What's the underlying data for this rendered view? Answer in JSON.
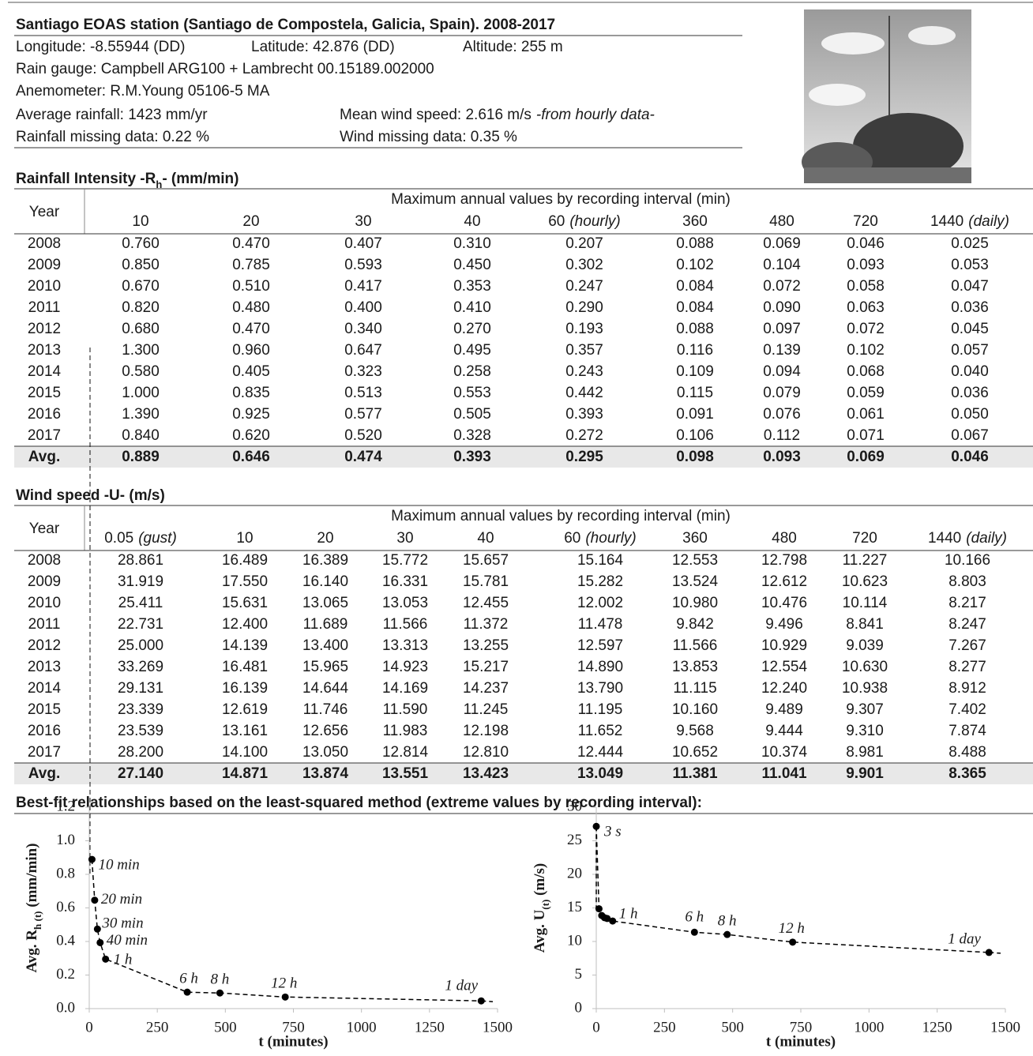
{
  "header": {
    "title": "Santiago EOAS station (Santiago de Compostela, Galicia, Spain). 2008-2017",
    "longitude": "Longitude: -8.55944 (DD)",
    "latitude": "Latitude: 42.876 (DD)",
    "altitude": "Altitude: 255 m",
    "rain_gauge": "Rain gauge: Campbell  ARG100 + Lambrecht 00.15189.002000",
    "anemometer": "Anemometer: R.M.Young 05106-5 MA",
    "average_rainfall": "Average rainfall: 1423 mm/yr",
    "mean_wind": "Mean wind speed: 2.616 m/s",
    "mean_wind_note": "-from hourly data-",
    "rain_missing": "Rainfall missing data: 0.22 %",
    "wind_missing": "Wind missing data: 0.35 %"
  },
  "rainfall": {
    "title_parts": [
      "Rainfall Intensity -R",
      "h",
      "- (mm/min)"
    ],
    "year_header": "Year",
    "span_header": "Maximum annual values by recording interval (min)",
    "columns": [
      {
        "label": "10"
      },
      {
        "label": "20"
      },
      {
        "label": "30"
      },
      {
        "label": "40"
      },
      {
        "label": "60",
        "note": "(hourly)"
      },
      {
        "label": "360"
      },
      {
        "label": "480"
      },
      {
        "label": "720"
      },
      {
        "label": "1440",
        "note": "(daily)"
      }
    ],
    "rows": [
      [
        "2008",
        "0.760",
        "0.470",
        "0.407",
        "0.310",
        "0.207",
        "0.088",
        "0.069",
        "0.046",
        "0.025"
      ],
      [
        "2009",
        "0.850",
        "0.785",
        "0.593",
        "0.450",
        "0.302",
        "0.102",
        "0.104",
        "0.093",
        "0.053"
      ],
      [
        "2010",
        "0.670",
        "0.510",
        "0.417",
        "0.353",
        "0.247",
        "0.084",
        "0.072",
        "0.058",
        "0.047"
      ],
      [
        "2011",
        "0.820",
        "0.480",
        "0.400",
        "0.410",
        "0.290",
        "0.084",
        "0.090",
        "0.063",
        "0.036"
      ],
      [
        "2012",
        "0.680",
        "0.470",
        "0.340",
        "0.270",
        "0.193",
        "0.088",
        "0.097",
        "0.072",
        "0.045"
      ],
      [
        "2013",
        "1.300",
        "0.960",
        "0.647",
        "0.495",
        "0.357",
        "0.116",
        "0.139",
        "0.102",
        "0.057"
      ],
      [
        "2014",
        "0.580",
        "0.405",
        "0.323",
        "0.258",
        "0.243",
        "0.109",
        "0.094",
        "0.068",
        "0.040"
      ],
      [
        "2015",
        "1.000",
        "0.835",
        "0.513",
        "0.553",
        "0.442",
        "0.115",
        "0.079",
        "0.059",
        "0.036"
      ],
      [
        "2016",
        "1.390",
        "0.925",
        "0.577",
        "0.505",
        "0.393",
        "0.091",
        "0.076",
        "0.061",
        "0.050"
      ],
      [
        "2017",
        "0.840",
        "0.620",
        "0.520",
        "0.328",
        "0.272",
        "0.106",
        "0.112",
        "0.071",
        "0.067"
      ]
    ],
    "average": [
      "Avg.",
      "0.889",
      "0.646",
      "0.474",
      "0.393",
      "0.295",
      "0.098",
      "0.093",
      "0.069",
      "0.046"
    ]
  },
  "wind": {
    "title_parts": [
      "Wind speed -U- (m/s)"
    ],
    "year_header": "Year",
    "span_header": "Maximum annual values by recording interval (min)",
    "columns": [
      {
        "label": "0.05",
        "note": "(gust)"
      },
      {
        "label": "10"
      },
      {
        "label": "20"
      },
      {
        "label": "30"
      },
      {
        "label": "40"
      },
      {
        "label": "60",
        "note": "(hourly)"
      },
      {
        "label": "360"
      },
      {
        "label": "480"
      },
      {
        "label": "720"
      },
      {
        "label": "1440",
        "note": "(daily)"
      }
    ],
    "rows": [
      [
        "2008",
        "28.861",
        "16.489",
        "16.389",
        "15.772",
        "15.657",
        "15.164",
        "12.553",
        "12.798",
        "11.227",
        "10.166"
      ],
      [
        "2009",
        "31.919",
        "17.550",
        "16.140",
        "16.331",
        "15.781",
        "15.282",
        "13.524",
        "12.612",
        "10.623",
        "8.803"
      ],
      [
        "2010",
        "25.411",
        "15.631",
        "13.065",
        "13.053",
        "12.455",
        "12.002",
        "10.980",
        "10.476",
        "10.114",
        "8.217"
      ],
      [
        "2011",
        "22.731",
        "12.400",
        "11.689",
        "11.566",
        "11.372",
        "11.478",
        "9.842",
        "9.496",
        "8.841",
        "8.247"
      ],
      [
        "2012",
        "25.000",
        "14.139",
        "13.400",
        "13.313",
        "13.255",
        "12.597",
        "11.566",
        "10.929",
        "9.039",
        "7.267"
      ],
      [
        "2013",
        "33.269",
        "16.481",
        "15.965",
        "14.923",
        "15.217",
        "14.890",
        "13.853",
        "12.554",
        "10.630",
        "8.277"
      ],
      [
        "2014",
        "29.131",
        "16.139",
        "14.644",
        "14.169",
        "14.237",
        "13.790",
        "11.115",
        "12.240",
        "10.938",
        "8.912"
      ],
      [
        "2015",
        "23.339",
        "12.619",
        "11.746",
        "11.590",
        "11.245",
        "11.195",
        "10.160",
        "9.489",
        "9.307",
        "7.402"
      ],
      [
        "2016",
        "23.539",
        "13.161",
        "12.656",
        "11.983",
        "12.198",
        "11.652",
        "9.568",
        "9.444",
        "9.310",
        "7.874"
      ],
      [
        "2017",
        "28.200",
        "14.100",
        "13.050",
        "12.814",
        "12.810",
        "12.444",
        "10.652",
        "10.374",
        "8.981",
        "8.488"
      ]
    ],
    "average": [
      "Avg.",
      "27.140",
      "14.871",
      "13.874",
      "13.551",
      "13.423",
      "13.049",
      "11.381",
      "11.041",
      "9.901",
      "8.365"
    ]
  },
  "fit_title": "Best-fit relationships based on the least-squared method (extreme values by recording interval):",
  "chart_data": [
    {
      "type": "scatter",
      "x_label": "t (minutes)",
      "y_label_parts": [
        "Avg. R",
        "h (t)",
        " (mm/min)"
      ],
      "color": "#000000",
      "x": [
        10,
        20,
        30,
        40,
        60,
        360,
        480,
        720,
        1440
      ],
      "values": [
        0.889,
        0.646,
        0.474,
        0.393,
        0.295,
        0.098,
        0.093,
        0.069,
        0.046
      ],
      "point_labels": [
        "10 min",
        "20 min",
        "30 min",
        "40 min",
        "1 h",
        "6 h",
        "8 h",
        "12 h",
        "1 day"
      ],
      "xlim": [
        0,
        1500
      ],
      "xticks": [
        0,
        250,
        500,
        750,
        1000,
        1250,
        1500
      ],
      "ylim": [
        0,
        1.2
      ],
      "yticks": [
        {
          "value": 0,
          "label": "0.0"
        },
        0.2,
        0.4,
        0.6,
        0.8,
        {
          "value": 1,
          "label": "1.0"
        },
        1.2
      ]
    },
    {
      "type": "scatter",
      "x_label": "t (minutes)",
      "y_label_parts": [
        "Avg. U",
        "(t)",
        " (m/s)"
      ],
      "color": "#000000",
      "x": [
        0.05,
        10,
        20,
        30,
        40,
        60,
        360,
        480,
        720,
        1440
      ],
      "values": [
        27.14,
        14.871,
        13.874,
        13.551,
        13.423,
        13.049,
        11.381,
        11.041,
        9.901,
        8.365
      ],
      "point_labels": [
        "3 s",
        null,
        null,
        null,
        null,
        "1 h",
        "6 h",
        "8 h",
        "12 h",
        "1 day"
      ],
      "xlim": [
        0,
        1500
      ],
      "xticks": [
        0,
        250,
        500,
        750,
        1000,
        1250,
        1500
      ],
      "ylim": [
        0,
        30
      ],
      "yticks": [
        0,
        5,
        10,
        15,
        20,
        25,
        30
      ]
    }
  ]
}
